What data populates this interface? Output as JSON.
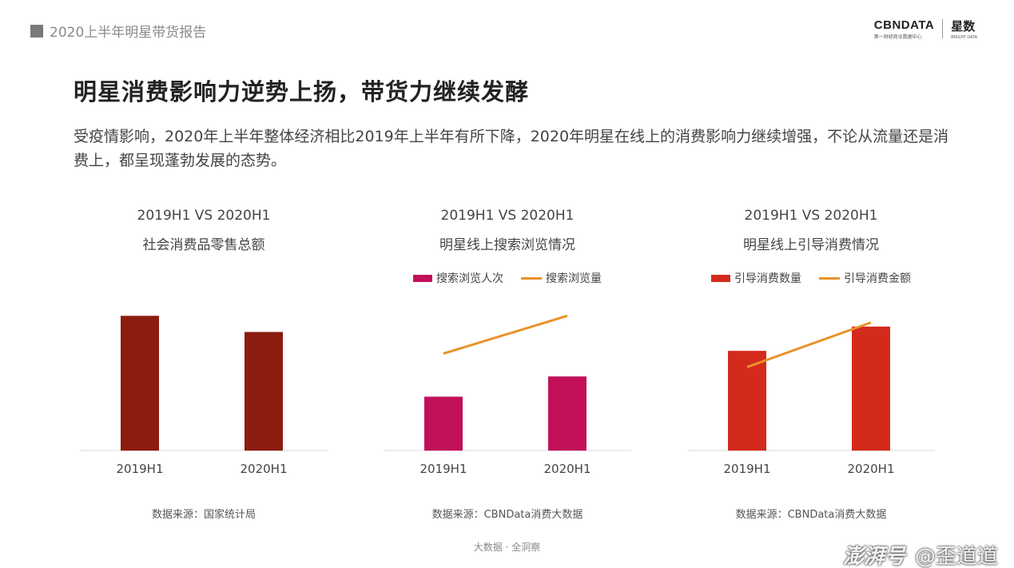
{
  "header": {
    "report_title": "2020上半年明星带货报告"
  },
  "logo": {
    "cbn_main": "CBNDATA",
    "cbn_sub": "第一财经商业数据中心",
    "xs_main": "星数",
    "xs_sub": "BRIGHT DATA"
  },
  "headline": "明星消费影响力逆势上扬，带货力继续发酵",
  "description": "受疫情影响，2020年上半年整体经济相比2019年上半年有所下降，2020年明星在线上的消费影响力继续增强，不论从流量还是消费上，都呈现蓬勃发展的态势。",
  "chart_data": [
    {
      "type": "bar",
      "title": "2019H1 VS 2020H1",
      "subtitle": "社会消费品零售总额",
      "categories": [
        "2019H1",
        "2020H1"
      ],
      "series": [
        {
          "values": [
            1.0,
            0.88
          ],
          "color": "#8b1c0f"
        }
      ],
      "ylim": [
        0,
        1.15
      ],
      "source": "数据来源：国家统计局"
    },
    {
      "type": "bar+line",
      "title": "2019H1 VS 2020H1",
      "subtitle": "明星线上搜索浏览情况",
      "categories": [
        "2019H1",
        "2020H1"
      ],
      "series": [
        {
          "name": "搜索浏览人次",
          "kind": "bar",
          "values": [
            0.4,
            0.55
          ],
          "color": "#c2105a"
        },
        {
          "name": "搜索浏览量",
          "kind": "line",
          "values": [
            0.72,
            1.0
          ],
          "color": "#e8932a"
        }
      ],
      "ylim": [
        0,
        1.15
      ],
      "source": "数据来源：CBNData消费大数据"
    },
    {
      "type": "bar+line",
      "title": "2019H1 VS 2020H1",
      "subtitle": "明星线上引导消费情况",
      "categories": [
        "2019H1",
        "2020H1"
      ],
      "series": [
        {
          "name": "引导消费数量",
          "kind": "bar",
          "values": [
            0.74,
            0.92
          ],
          "color": "#d42a1c"
        },
        {
          "name": "引导消费金额",
          "kind": "line",
          "values": [
            0.62,
            0.95
          ],
          "color": "#e8932a"
        }
      ],
      "ylim": [
        0,
        1.15
      ],
      "source": "数据来源：CBNData消费大数据"
    }
  ],
  "footer": {
    "tag": "大数据 · 全洞察"
  },
  "watermark": {
    "brand": "澎湃号",
    "author": "@歪道道"
  }
}
